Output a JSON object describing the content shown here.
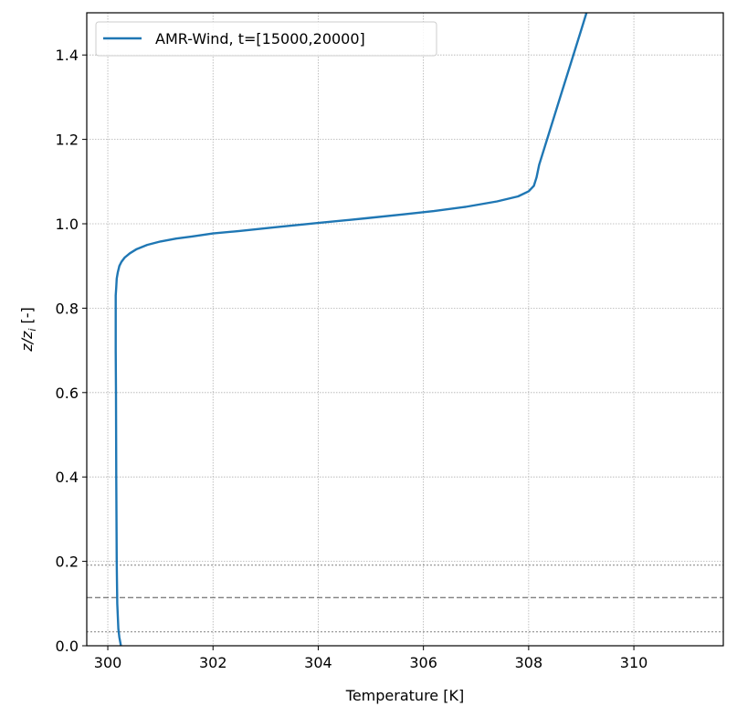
{
  "chart_data": {
    "type": "line",
    "xlabel": "Temperature [K]",
    "ylabel": "z/z_i [-]",
    "ylabel_main": "z/z",
    "ylabel_sub": "i",
    "ylabel_suffix": " [-]",
    "xlim": [
      299.6,
      311.7
    ],
    "ylim": [
      0.0,
      1.5
    ],
    "xticks": [
      300,
      302,
      304,
      306,
      308,
      310
    ],
    "yticks": [
      0.0,
      0.2,
      0.4,
      0.6,
      0.8,
      1.0,
      1.2,
      1.4
    ],
    "xtick_labels": [
      "300",
      "302",
      "304",
      "306",
      "308",
      "310"
    ],
    "ytick_labels": [
      "0.0",
      "0.2",
      "0.4",
      "0.6",
      "0.8",
      "1.0",
      "1.2",
      "1.4"
    ],
    "grid": true,
    "legend_position": "top-left",
    "series": [
      {
        "name": "AMR-Wind, t=[15000,20000]",
        "color": "#1f77b4",
        "x": [
          300.25,
          300.22,
          300.2,
          300.18,
          300.17,
          300.16,
          300.155,
          300.15,
          300.15,
          300.15,
          300.15,
          300.16,
          300.17,
          300.19,
          300.22,
          300.26,
          300.32,
          300.42,
          300.55,
          300.75,
          301.0,
          301.3,
          301.6,
          302.0,
          302.5,
          303.2,
          304.0,
          304.9,
          305.6,
          306.2,
          306.8,
          307.4,
          307.8,
          308.0,
          308.1,
          308.15,
          308.2,
          308.4,
          308.6,
          308.8,
          309.0,
          309.1
        ],
        "y": [
          0.0,
          0.02,
          0.04,
          0.1,
          0.2,
          0.4,
          0.6,
          0.7,
          0.75,
          0.8,
          0.83,
          0.85,
          0.87,
          0.885,
          0.9,
          0.91,
          0.92,
          0.93,
          0.94,
          0.95,
          0.958,
          0.965,
          0.97,
          0.977,
          0.983,
          0.992,
          1.002,
          1.013,
          1.022,
          1.03,
          1.04,
          1.053,
          1.065,
          1.077,
          1.09,
          1.11,
          1.14,
          1.22,
          1.3,
          1.38,
          1.46,
          1.5
        ]
      }
    ],
    "hlines": [
      {
        "y": 0.033,
        "style": "dotted",
        "color": "#808080"
      },
      {
        "y": 0.114,
        "style": "dashed",
        "color": "#808080"
      },
      {
        "y": 0.191,
        "style": "dotted",
        "color": "#808080"
      }
    ]
  }
}
